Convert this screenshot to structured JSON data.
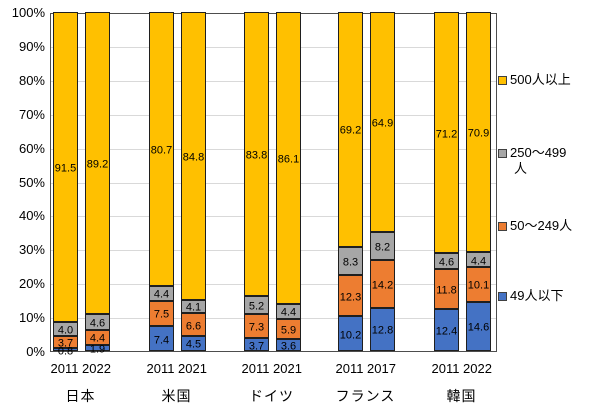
{
  "chart_data": {
    "type": "bar",
    "subtype": "100-percent-stacked-column",
    "title": "",
    "xlabel": "",
    "ylabel": "",
    "y_axis": {
      "min": 0,
      "max": 100,
      "step": 10,
      "ticks": [
        "100%",
        "90%",
        "80%",
        "70%",
        "60%",
        "50%",
        "40%",
        "30%",
        "20%",
        "10%",
        "0%"
      ]
    },
    "grid": "horizontal",
    "legend_position": "right",
    "series": [
      {
        "key": "size-49-under",
        "name": "49人以下",
        "color": "#4472C4"
      },
      {
        "key": "size-50-249",
        "name": "50〜249人",
        "color": "#ED7D31"
      },
      {
        "key": "size-250-499",
        "name": "250〜499人",
        "color": "#A6A6A6"
      },
      {
        "key": "size-500-plus",
        "name": "500人以上",
        "color": "#FFC000"
      }
    ],
    "legend": [
      {
        "key": "size-500-plus",
        "label": "500人以上",
        "lines": [
          "500人以上"
        ],
        "color": "#FFC000"
      },
      {
        "key": "size-250-499",
        "label": "250〜499人",
        "lines": [
          "250〜499",
          "人"
        ],
        "color": "#A6A6A6"
      },
      {
        "key": "size-50-249",
        "label": "50〜249人",
        "lines": [
          "50〜249人"
        ],
        "color": "#ED7D31"
      },
      {
        "key": "size-49-under",
        "label": "49人以下",
        "lines": [
          "49人以下"
        ],
        "color": "#4472C4"
      }
    ],
    "groups": [
      {
        "key": "japan",
        "country": "日本",
        "bars": [
          {
            "year": "2011",
            "values": [
              0.8,
              3.7,
              4.0,
              91.5
            ]
          },
          {
            "year": "2022",
            "values": [
              1.9,
              4.4,
              4.6,
              89.2
            ]
          }
        ]
      },
      {
        "key": "usa",
        "country": "米国",
        "bars": [
          {
            "year": "2011",
            "values": [
              7.4,
              7.5,
              4.4,
              80.7
            ]
          },
          {
            "year": "2021",
            "values": [
              4.5,
              6.6,
              4.1,
              84.8
            ]
          }
        ]
      },
      {
        "key": "germany",
        "country": "ドイツ",
        "bars": [
          {
            "year": "2011",
            "values": [
              3.7,
              7.3,
              5.2,
              83.8
            ]
          },
          {
            "year": "2021",
            "values": [
              3.6,
              5.9,
              4.4,
              86.1
            ]
          }
        ]
      },
      {
        "key": "france",
        "country": "フランス",
        "bars": [
          {
            "year": "2011",
            "values": [
              10.2,
              12.3,
              8.3,
              69.2
            ]
          },
          {
            "year": "2017",
            "values": [
              12.8,
              14.2,
              8.2,
              64.9
            ]
          }
        ]
      },
      {
        "key": "korea",
        "country": "韓国",
        "bars": [
          {
            "year": "2011",
            "values": [
              12.4,
              11.8,
              4.6,
              71.2
            ]
          },
          {
            "year": "2022",
            "values": [
              14.6,
              10.1,
              4.4,
              70.9
            ]
          }
        ]
      }
    ],
    "value_label_decimals": 1
  }
}
